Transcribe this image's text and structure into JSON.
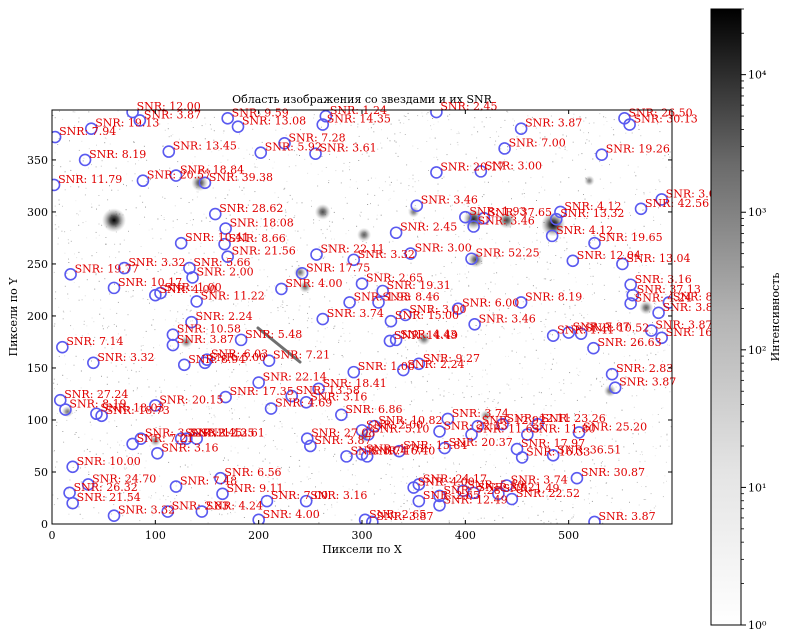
{
  "chart_data": {
    "type": "scatter",
    "title": "Область изображения со звездами и их SNR",
    "xlabel": "Пиксели по X",
    "ylabel": "Пиксели по Y",
    "xlim": [
      0,
      600
    ],
    "ylim": [
      0,
      398
    ],
    "x_ticks": [
      0,
      100,
      200,
      300,
      400,
      500
    ],
    "y_ticks": [
      0,
      50,
      100,
      150,
      200,
      250,
      300,
      350
    ],
    "colorbar": {
      "label": "Интенсивность",
      "scale": "log",
      "range": [
        1,
        30000
      ],
      "ticks": [
        {
          "value": 1,
          "label": "10⁰"
        },
        {
          "value": 10,
          "label": "10¹"
        },
        {
          "value": 100,
          "label": "10²"
        },
        {
          "value": 1000,
          "label": "10³"
        },
        {
          "value": 10000,
          "label": "10⁴"
        }
      ],
      "colormap": "gray_r"
    },
    "background_stars": [
      {
        "x": 60,
        "y": 292,
        "b": 1.0
      },
      {
        "x": 485,
        "y": 288,
        "b": 1.0
      },
      {
        "x": 408,
        "y": 293,
        "b": 0.8
      },
      {
        "x": 440,
        "y": 292,
        "b": 0.6
      },
      {
        "x": 143,
        "y": 328,
        "b": 0.6
      },
      {
        "x": 262,
        "y": 300,
        "b": 0.55
      },
      {
        "x": 302,
        "y": 278,
        "b": 0.45
      },
      {
        "x": 410,
        "y": 254,
        "b": 0.55
      },
      {
        "x": 360,
        "y": 178,
        "b": 0.4
      },
      {
        "x": 240,
        "y": 242,
        "b": 0.35
      },
      {
        "x": 575,
        "y": 208,
        "b": 0.45
      },
      {
        "x": 245,
        "y": 228,
        "b": 0.35
      },
      {
        "x": 302,
        "y": 84,
        "b": 0.35
      },
      {
        "x": 420,
        "y": 104,
        "b": 0.3
      },
      {
        "x": 100,
        "y": 80,
        "b": 0.3
      },
      {
        "x": 540,
        "y": 128,
        "b": 0.35
      },
      {
        "x": 130,
        "y": 175,
        "b": 0.35
      },
      {
        "x": 15,
        "y": 108,
        "b": 0.3
      },
      {
        "x": 350,
        "y": 300,
        "b": 0.3
      },
      {
        "x": 520,
        "y": 330,
        "b": 0.25
      }
    ],
    "stars": [
      {
        "x": 3,
        "y": 372,
        "snr": "7.94"
      },
      {
        "x": 38,
        "y": 380,
        "snr": "19.13"
      },
      {
        "x": 78,
        "y": 396,
        "snr": "12.00"
      },
      {
        "x": 85,
        "y": 388,
        "snr": "3.87"
      },
      {
        "x": 170,
        "y": 390,
        "snr": "9.59"
      },
      {
        "x": 180,
        "y": 382,
        "snr": "13.08"
      },
      {
        "x": 265,
        "y": 392,
        "snr": "1.24"
      },
      {
        "x": 262,
        "y": 384,
        "snr": "14.35"
      },
      {
        "x": 372,
        "y": 396,
        "snr": "2.45"
      },
      {
        "x": 454,
        "y": 380,
        "snr": "3.87"
      },
      {
        "x": 554,
        "y": 390,
        "snr": "26.50"
      },
      {
        "x": 559,
        "y": 384,
        "snr": "30.13"
      },
      {
        "x": 32,
        "y": 350,
        "snr": "8.19"
      },
      {
        "x": 113,
        "y": 358,
        "snr": "13.45"
      },
      {
        "x": 202,
        "y": 357,
        "snr": "5.92"
      },
      {
        "x": 225,
        "y": 366,
        "snr": "7.28"
      },
      {
        "x": 255,
        "y": 356,
        "snr": "3.61"
      },
      {
        "x": 438,
        "y": 361,
        "snr": "7.00"
      },
      {
        "x": 532,
        "y": 355,
        "snr": "19.26"
      },
      {
        "x": 2,
        "y": 326,
        "snr": "11.79"
      },
      {
        "x": 88,
        "y": 330,
        "snr": "20.57"
      },
      {
        "x": 120,
        "y": 335,
        "snr": "18.84"
      },
      {
        "x": 148,
        "y": 328,
        "snr": "39.38"
      },
      {
        "x": 372,
        "y": 338,
        "snr": "20.17"
      },
      {
        "x": 415,
        "y": 339,
        "snr": "3.00"
      },
      {
        "x": 158,
        "y": 298,
        "snr": "28.62"
      },
      {
        "x": 168,
        "y": 284,
        "snr": "18.08"
      },
      {
        "x": 353,
        "y": 306,
        "snr": "3.46"
      },
      {
        "x": 400,
        "y": 295,
        "snr": "1.93"
      },
      {
        "x": 418,
        "y": 294,
        "snr": "37.65"
      },
      {
        "x": 408,
        "y": 286,
        "snr": "3.46"
      },
      {
        "x": 333,
        "y": 280,
        "snr": "2.45"
      },
      {
        "x": 488,
        "y": 293,
        "snr": "13.32"
      },
      {
        "x": 492,
        "y": 300,
        "snr": "4.12"
      },
      {
        "x": 484,
        "y": 277,
        "snr": "4.12"
      },
      {
        "x": 590,
        "y": 312,
        "snr": "3.00"
      },
      {
        "x": 570,
        "y": 303,
        "snr": "42.56"
      },
      {
        "x": 525,
        "y": 270,
        "snr": "19.65"
      },
      {
        "x": 125,
        "y": 270,
        "snr": "10.41"
      },
      {
        "x": 167,
        "y": 269,
        "snr": "8.66"
      },
      {
        "x": 170,
        "y": 257,
        "snr": "21.56"
      },
      {
        "x": 256,
        "y": 259,
        "snr": "22.11"
      },
      {
        "x": 292,
        "y": 254,
        "snr": "3.32"
      },
      {
        "x": 347,
        "y": 260,
        "snr": "3.00"
      },
      {
        "x": 406,
        "y": 255,
        "snr": "52.25"
      },
      {
        "x": 504,
        "y": 253,
        "snr": "12.04"
      },
      {
        "x": 552,
        "y": 250,
        "snr": "13.04"
      },
      {
        "x": 18,
        "y": 240,
        "snr": "19.77"
      },
      {
        "x": 70,
        "y": 246,
        "snr": "3.32"
      },
      {
        "x": 133,
        "y": 246,
        "snr": "5.66"
      },
      {
        "x": 136,
        "y": 237,
        "snr": "2.00"
      },
      {
        "x": 242,
        "y": 241,
        "snr": "17.75"
      },
      {
        "x": 300,
        "y": 231,
        "snr": "2.65"
      },
      {
        "x": 320,
        "y": 224,
        "snr": "19.31"
      },
      {
        "x": 60,
        "y": 227,
        "snr": "10.17"
      },
      {
        "x": 100,
        "y": 220,
        "snr": "4.00"
      },
      {
        "x": 105,
        "y": 222,
        "snr": "1.00"
      },
      {
        "x": 140,
        "y": 214,
        "snr": "11.22"
      },
      {
        "x": 222,
        "y": 226,
        "snr": "4.00"
      },
      {
        "x": 288,
        "y": 213,
        "snr": "1.93"
      },
      {
        "x": 316,
        "y": 213,
        "snr": "8.46"
      },
      {
        "x": 393,
        "y": 207,
        "snr": "6.00"
      },
      {
        "x": 454,
        "y": 213,
        "snr": "8.19"
      },
      {
        "x": 560,
        "y": 230,
        "snr": "3.16"
      },
      {
        "x": 562,
        "y": 220,
        "snr": "37.13"
      },
      {
        "x": 560,
        "y": 212,
        "snr": "4.24"
      },
      {
        "x": 597,
        "y": 213,
        "snr": "8.00"
      },
      {
        "x": 587,
        "y": 203,
        "snr": "3.87"
      },
      {
        "x": 135,
        "y": 194,
        "snr": "2.24"
      },
      {
        "x": 262,
        "y": 197,
        "snr": "3.74"
      },
      {
        "x": 328,
        "y": 195,
        "snr": "15.00"
      },
      {
        "x": 342,
        "y": 201,
        "snr": "3.00"
      },
      {
        "x": 409,
        "y": 192,
        "snr": "3.46"
      },
      {
        "x": 580,
        "y": 186,
        "snr": "3.87"
      },
      {
        "x": 117,
        "y": 182,
        "snr": "10.58"
      },
      {
        "x": 183,
        "y": 177,
        "snr": "5.48"
      },
      {
        "x": 327,
        "y": 176,
        "snr": "14.49"
      },
      {
        "x": 333,
        "y": 177,
        "snr": "4.43"
      },
      {
        "x": 485,
        "y": 181,
        "snr": "1.41"
      },
      {
        "x": 512,
        "y": 183,
        "snr": "10.52"
      },
      {
        "x": 500,
        "y": 184,
        "snr": "7.87"
      },
      {
        "x": 590,
        "y": 179,
        "snr": "16.49"
      },
      {
        "x": 10,
        "y": 170,
        "snr": "7.14"
      },
      {
        "x": 117,
        "y": 172,
        "snr": "3.87"
      },
      {
        "x": 524,
        "y": 169,
        "snr": "26.63"
      },
      {
        "x": 40,
        "y": 155,
        "snr": "3.32"
      },
      {
        "x": 148,
        "y": 155,
        "snr": "5.00"
      },
      {
        "x": 150,
        "y": 158,
        "snr": "6.03"
      },
      {
        "x": 128,
        "y": 153,
        "snr": "8.94"
      },
      {
        "x": 210,
        "y": 157,
        "snr": "7.21"
      },
      {
        "x": 340,
        "y": 148,
        "snr": "2.24"
      },
      {
        "x": 355,
        "y": 154,
        "snr": "9.27"
      },
      {
        "x": 542,
        "y": 144,
        "snr": "2.83"
      },
      {
        "x": 545,
        "y": 131,
        "snr": "3.87"
      },
      {
        "x": 200,
        "y": 136,
        "snr": "22.14"
      },
      {
        "x": 292,
        "y": 146,
        "snr": "1.00"
      },
      {
        "x": 8,
        "y": 119,
        "snr": "27.24"
      },
      {
        "x": 13,
        "y": 110,
        "snr": "8.19"
      },
      {
        "x": 43,
        "y": 106,
        "snr": "18.03"
      },
      {
        "x": 48,
        "y": 104,
        "snr": "18.73"
      },
      {
        "x": 100,
        "y": 114,
        "snr": "20.15"
      },
      {
        "x": 168,
        "y": 122,
        "snr": "17.35"
      },
      {
        "x": 232,
        "y": 123,
        "snr": "13.58"
      },
      {
        "x": 258,
        "y": 130,
        "snr": "18.41"
      },
      {
        "x": 246,
        "y": 117,
        "snr": "3.16"
      },
      {
        "x": 212,
        "y": 111,
        "snr": "4.69"
      },
      {
        "x": 280,
        "y": 105,
        "snr": "6.86"
      },
      {
        "x": 383,
        "y": 101,
        "snr": "3.74"
      },
      {
        "x": 300,
        "y": 90,
        "snr": "2.00"
      },
      {
        "x": 312,
        "y": 94,
        "snr": "10.82"
      },
      {
        "x": 375,
        "y": 89,
        "snr": "22.23"
      },
      {
        "x": 412,
        "y": 94,
        "snr": "12.92"
      },
      {
        "x": 436,
        "y": 96,
        "snr": "12.11"
      },
      {
        "x": 470,
        "y": 96,
        "snr": "23.26"
      },
      {
        "x": 406,
        "y": 86,
        "snr": "11.63"
      },
      {
        "x": 460,
        "y": 86,
        "snr": "11.80"
      },
      {
        "x": 510,
        "y": 88,
        "snr": "25.20"
      },
      {
        "x": 306,
        "y": 86,
        "snr": "5.10"
      },
      {
        "x": 78,
        "y": 77,
        "snr": "7.21"
      },
      {
        "x": 86,
        "y": 82,
        "snr": "3.32"
      },
      {
        "x": 125,
        "y": 82,
        "snr": "2.45"
      },
      {
        "x": 130,
        "y": 82,
        "snr": "12.25"
      },
      {
        "x": 140,
        "y": 82,
        "snr": "13.61"
      },
      {
        "x": 102,
        "y": 68,
        "snr": "3.16"
      },
      {
        "x": 247,
        "y": 82,
        "snr": "27.08"
      },
      {
        "x": 250,
        "y": 75,
        "snr": "3.87"
      },
      {
        "x": 285,
        "y": 65,
        "snr": "5.74"
      },
      {
        "x": 300,
        "y": 67,
        "snr": "1.76"
      },
      {
        "x": 305,
        "y": 65,
        "snr": "16.40"
      },
      {
        "x": 336,
        "y": 70,
        "snr": "15.84"
      },
      {
        "x": 380,
        "y": 73,
        "snr": "20.37"
      },
      {
        "x": 450,
        "y": 72,
        "snr": "17.97"
      },
      {
        "x": 455,
        "y": 64,
        "snr": "16.33"
      },
      {
        "x": 485,
        "y": 66,
        "snr": "36.51"
      },
      {
        "x": 20,
        "y": 55,
        "snr": "10.00"
      },
      {
        "x": 35,
        "y": 38,
        "snr": "24.70"
      },
      {
        "x": 17,
        "y": 30,
        "snr": "26.32"
      },
      {
        "x": 20,
        "y": 20,
        "snr": "21.54"
      },
      {
        "x": 120,
        "y": 36,
        "snr": "7.48"
      },
      {
        "x": 163,
        "y": 44,
        "snr": "6.56"
      },
      {
        "x": 165,
        "y": 29,
        "snr": "9.11"
      },
      {
        "x": 350,
        "y": 35,
        "snr": "4.00"
      },
      {
        "x": 355,
        "y": 38,
        "snr": "24.17"
      },
      {
        "x": 398,
        "y": 32,
        "snr": "5.10"
      },
      {
        "x": 408,
        "y": 30,
        "snr": "3.52"
      },
      {
        "x": 440,
        "y": 37,
        "snr": "3.74"
      },
      {
        "x": 432,
        "y": 29,
        "snr": "1.49"
      },
      {
        "x": 445,
        "y": 24,
        "snr": "22.52"
      },
      {
        "x": 508,
        "y": 44,
        "snr": "30.87"
      },
      {
        "x": 355,
        "y": 22,
        "snr": "2.65"
      },
      {
        "x": 375,
        "y": 18,
        "snr": "12.49"
      },
      {
        "x": 375,
        "y": 27,
        "snr": "7.28"
      },
      {
        "x": 60,
        "y": 8,
        "snr": "3.32"
      },
      {
        "x": 112,
        "y": 12,
        "snr": "2.83"
      },
      {
        "x": 145,
        "y": 12,
        "snr": "4.24"
      },
      {
        "x": 208,
        "y": 22,
        "snr": "7.00"
      },
      {
        "x": 246,
        "y": 22,
        "snr": "3.16"
      },
      {
        "x": 200,
        "y": 4,
        "snr": "4.00"
      },
      {
        "x": 303,
        "y": 4,
        "snr": "2.65"
      },
      {
        "x": 310,
        "y": 2,
        "snr": "3.87"
      },
      {
        "x": 525,
        "y": 2,
        "snr": "3.87"
      }
    ]
  }
}
